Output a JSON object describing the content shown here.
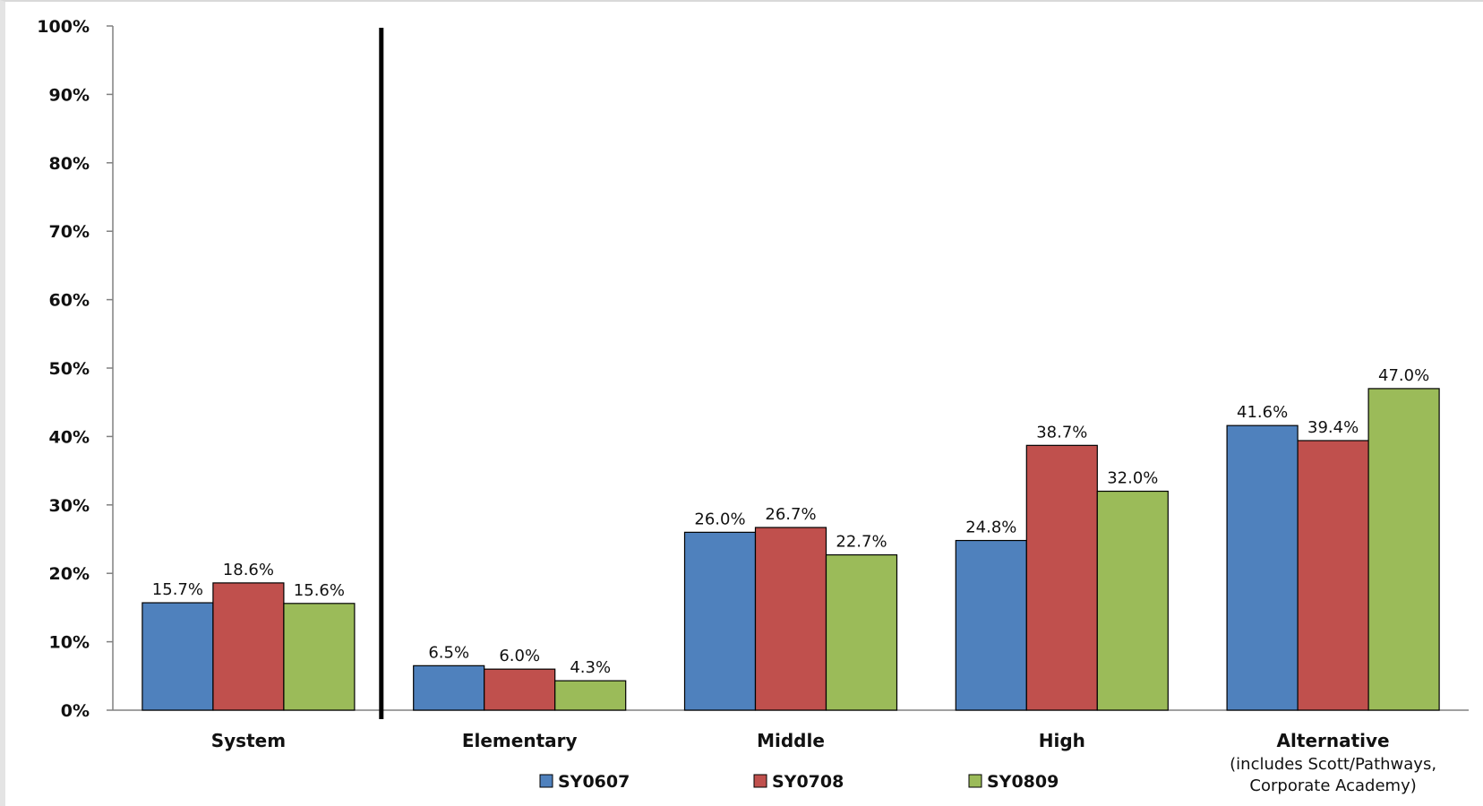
{
  "chart_data": {
    "type": "bar",
    "categories": [
      "System",
      "Elementary",
      "Middle",
      "High",
      "Alternative"
    ],
    "category_sublabels": [
      "",
      "",
      "",
      "",
      "(includes Scott/Pathways,\nCorporate Academy)"
    ],
    "series": [
      {
        "name": "SY0607",
        "color": "#4f81bd",
        "values": [
          15.7,
          6.5,
          26.0,
          24.8,
          41.6
        ]
      },
      {
        "name": "SY0708",
        "color": "#c0504d",
        "values": [
          18.6,
          6.0,
          26.7,
          38.7,
          39.4
        ]
      },
      {
        "name": "SY0809",
        "color": "#9bbb59",
        "values": [
          15.6,
          4.3,
          22.7,
          32.0,
          47.0
        ]
      }
    ],
    "data_labels": [
      [
        "15.7%",
        "6.5%",
        "26.0%",
        "24.8%",
        "41.6%"
      ],
      [
        "18.6%",
        "6.0%",
        "26.7%",
        "38.7%",
        "39.4%"
      ],
      [
        "15.6%",
        "4.3%",
        "22.7%",
        "32.0%",
        "47.0%"
      ]
    ],
    "yticks": [
      "0%",
      "10%",
      "20%",
      "30%",
      "40%",
      "50%",
      "60%",
      "70%",
      "80%",
      "90%",
      "100%"
    ],
    "ylim": [
      0,
      100
    ],
    "grid": false,
    "legend_position": "bottom",
    "separator_after_category": "System"
  }
}
